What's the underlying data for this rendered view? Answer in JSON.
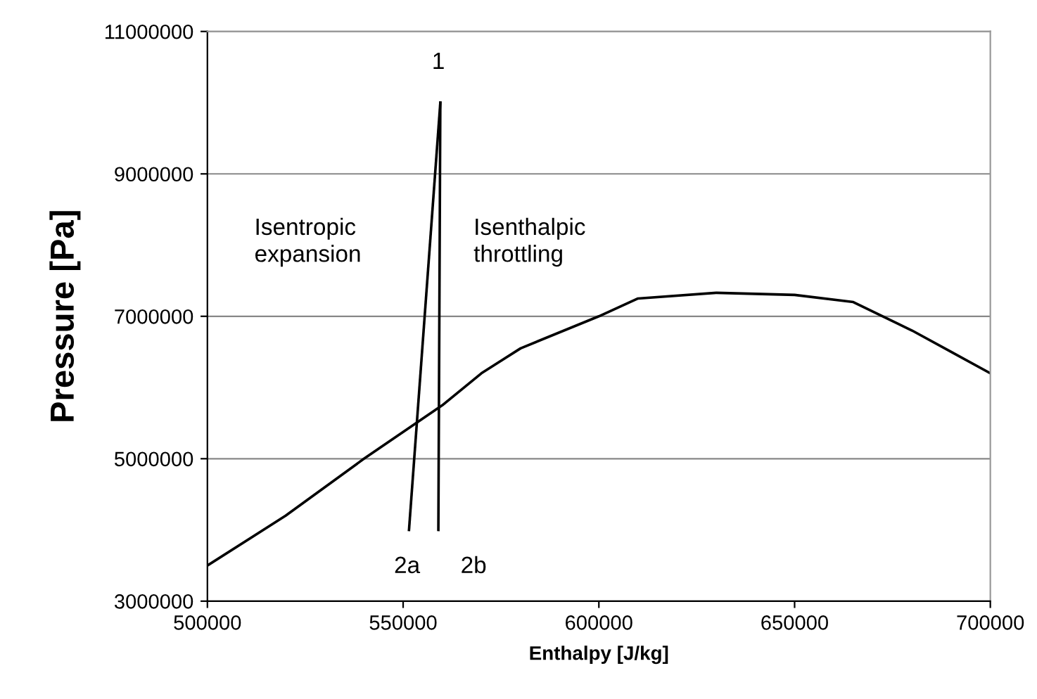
{
  "chart_data": {
    "type": "line",
    "xlabel": "Enthalpy [J/kg]",
    "ylabel": "Pressure [Pa]",
    "xlim": [
      500000,
      700000
    ],
    "xticks": [
      500000,
      550000,
      600000,
      650000,
      700000
    ],
    "ylim": [
      3000000,
      11000000
    ],
    "yticks": [
      3000000,
      5000000,
      7000000,
      9000000,
      11000000
    ],
    "grid": "y",
    "legend": false,
    "marker": "none",
    "line_style": "solid",
    "series": [
      {
        "color": "#000000",
        "x": [
          500000,
          520000,
          540000,
          560000,
          570000,
          580000,
          600000,
          610000,
          630000,
          650000,
          665000,
          680000,
          690000,
          700000
        ],
        "values": [
          3500000,
          4200000,
          5000000,
          5750000,
          6200000,
          6550000,
          7000000,
          7250000,
          7330000,
          7300000,
          7200000,
          6800000,
          6500000,
          6200000
        ]
      },
      {
        "color": "#000000",
        "x": [
          559500,
          551500
        ],
        "values": [
          10000000,
          4000000
        ]
      },
      {
        "color": "#000000",
        "x": [
          559500,
          559000
        ],
        "values": [
          10000000,
          4000000
        ]
      }
    ],
    "annotations": [
      "1",
      "2a",
      "2b",
      "Isentropic\nexpansion",
      "Isenthalpic\nthrottling"
    ]
  }
}
